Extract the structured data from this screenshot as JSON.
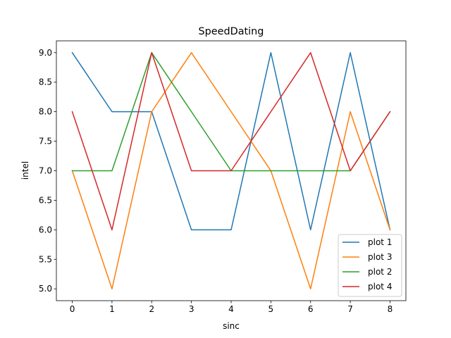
{
  "chart_data": {
    "type": "line",
    "title": "SpeedDating",
    "xlabel": "sinc",
    "ylabel": "intel",
    "x": [
      0,
      1,
      2,
      3,
      4,
      5,
      6,
      7,
      8
    ],
    "xlim": [
      -0.4,
      8.4
    ],
    "ylim": [
      4.8,
      9.2
    ],
    "xticks": [
      0,
      1,
      2,
      3,
      4,
      5,
      6,
      7,
      8
    ],
    "yticks": [
      5.0,
      5.5,
      6.0,
      6.5,
      7.0,
      7.5,
      8.0,
      8.5,
      9.0
    ],
    "grid": false,
    "legend_position": "lower-right",
    "series": [
      {
        "name": "plot 1",
        "color": "#1f77b4",
        "values": [
          9,
          8,
          8,
          6,
          6,
          9,
          6,
          9,
          6
        ]
      },
      {
        "name": "plot 3",
        "color": "#ff7f0e",
        "values": [
          7,
          5,
          8,
          9,
          8,
          7,
          5,
          8,
          6
        ]
      },
      {
        "name": "plot 2",
        "color": "#2ca02c",
        "values": [
          7,
          7,
          9,
          8,
          7,
          7,
          7,
          7,
          8
        ]
      },
      {
        "name": "plot 4",
        "color": "#d62728",
        "values": [
          8,
          6,
          9,
          7,
          7,
          8,
          9,
          7,
          8
        ]
      }
    ]
  }
}
